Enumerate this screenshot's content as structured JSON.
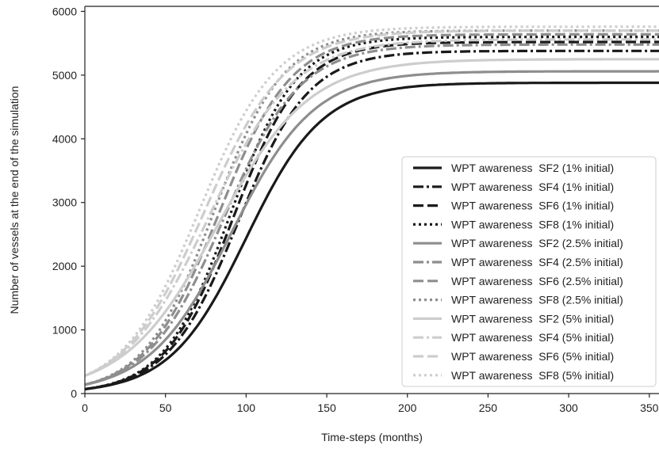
{
  "chart_data": {
    "type": "line",
    "title": "",
    "xlabel": "Time-steps (months)",
    "ylabel": "Number of vessels at the end of the simulation",
    "xlim": [
      0,
      356
    ],
    "ylim": [
      0,
      6080
    ],
    "xticks": [
      0,
      50,
      100,
      150,
      200,
      250,
      300,
      350
    ],
    "yticks": [
      0,
      1000,
      2000,
      3000,
      4000,
      5000,
      6000
    ],
    "grid": false,
    "legend_position": "right",
    "series": [
      {
        "name": "WPT awareness  SF2 (1% initial)",
        "color": "#1a1a1a",
        "style": "solid",
        "initial": 70,
        "final": 4880,
        "midpoint": 100
      },
      {
        "name": "WPT awareness  SF4 (1% initial)",
        "color": "#1a1a1a",
        "style": "dashdot",
        "initial": 70,
        "final": 5380,
        "midpoint": 95
      },
      {
        "name": "WPT awareness  SF6 (1% initial)",
        "color": "#1a1a1a",
        "style": "dashed",
        "initial": 70,
        "final": 5520,
        "midpoint": 92
      },
      {
        "name": "WPT awareness  SF8 (1% initial)",
        "color": "#1a1a1a",
        "style": "dotted",
        "initial": 70,
        "final": 5600,
        "midpoint": 90
      },
      {
        "name": "WPT awareness  SF2 (2.5% initial)",
        "color": "#8e8e8e",
        "style": "solid",
        "initial": 140,
        "final": 5060,
        "midpoint": 91
      },
      {
        "name": "WPT awareness  SF4 (2.5% initial)",
        "color": "#8e8e8e",
        "style": "dashdot",
        "initial": 140,
        "final": 5480,
        "midpoint": 86
      },
      {
        "name": "WPT awareness  SF6 (2.5% initial)",
        "color": "#8e8e8e",
        "style": "dashed",
        "initial": 140,
        "final": 5640,
        "midpoint": 83
      },
      {
        "name": "WPT awareness  SF8 (2.5% initial)",
        "color": "#8e8e8e",
        "style": "dotted",
        "initial": 140,
        "final": 5700,
        "midpoint": 80
      },
      {
        "name": "WPT awareness  SF2 (5% initial)",
        "color": "#cdcdcd",
        "style": "solid",
        "initial": 280,
        "final": 5250,
        "midpoint": 82
      },
      {
        "name": "WPT awareness  SF4 (5% initial)",
        "color": "#cdcdcd",
        "style": "dashdot",
        "initial": 280,
        "final": 5560,
        "midpoint": 77
      },
      {
        "name": "WPT awareness  SF6 (5% initial)",
        "color": "#cdcdcd",
        "style": "dashed",
        "initial": 280,
        "final": 5700,
        "midpoint": 74
      },
      {
        "name": "WPT awareness  SF8 (5% initial)",
        "color": "#cdcdcd",
        "style": "dotted",
        "initial": 280,
        "final": 5760,
        "midpoint": 71
      }
    ]
  }
}
